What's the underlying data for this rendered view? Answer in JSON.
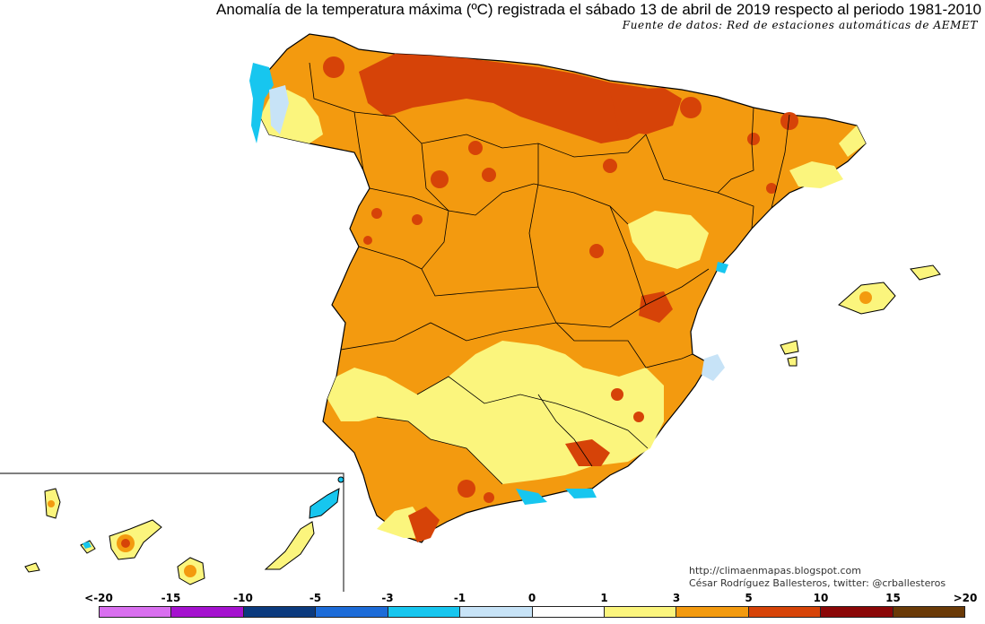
{
  "title": "Anomalía de la temperatura máxima (ºC) registrada el sábado 13 de abril de 2019 respecto al periodo 1981-2010",
  "subtitle": "Fuente de datos: Red de estaciones automáticas de AEMET",
  "credits": {
    "line1": "http://climaenmapas.blogspot.com",
    "line2": "César Rodríguez Ballesteros, twitter: @crballesteros"
  },
  "legend": {
    "labels": [
      "<-20",
      "-15",
      "-10",
      "-5",
      "-3",
      "-1",
      "0",
      "1",
      "3",
      "5",
      "10",
      "15",
      ">20"
    ],
    "colors": [
      "#d96fef",
      "#a512cf",
      "#0b3a7e",
      "#1c6bd8",
      "#17c6ef",
      "#c7e3f7",
      "#ffffff",
      "#fbf57d",
      "#f39a0f",
      "#d64308",
      "#8b0707",
      "#6a3a07"
    ]
  },
  "colors": {
    "anomaly_1_3": "#fbf57d",
    "anomaly_3_5": "#f39a0f",
    "anomaly_5_10": "#d64308",
    "anomaly_neg": "#17c6ef",
    "border": "#000000"
  }
}
